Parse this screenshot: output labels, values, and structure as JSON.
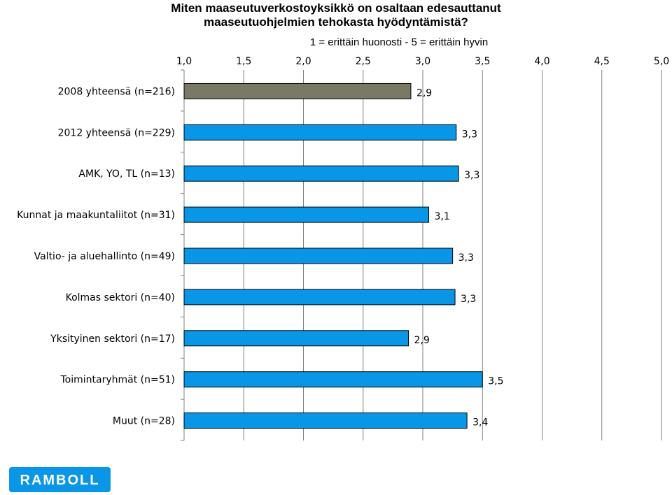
{
  "title_line1": "Miten maaseutuverkostoyksikkö on osaltaan edesauttanut",
  "title_line2": "maaseutuohjelmien tehokasta hyödyntämistä?",
  "subtitle": "1 = erittäin huonosti - 5 = erittäin hyvin",
  "logo_text": "RAMBOLL",
  "colors": {
    "bar_2008": "#7a7965",
    "bar_main": "#0a96e6",
    "bar_stroke": "#000000",
    "axis": "#808080",
    "logo_bg": "#0a96e6"
  },
  "chart_data": {
    "type": "bar",
    "orientation": "horizontal",
    "title": "Miten maaseutuverkostoyksikkö on osaltaan edesauttanut maaseutuohjelmien tehokasta hyödyntämistä?",
    "subtitle": "1 = erittäin huonosti - 5 = erittäin hyvin",
    "xlim": [
      1.0,
      5.0
    ],
    "ticks": [
      "1,0",
      "1,5",
      "2,0",
      "2,5",
      "3,0",
      "3,5",
      "4,0",
      "4,5",
      "5,0"
    ],
    "tick_values": [
      1.0,
      1.5,
      2.0,
      2.5,
      3.0,
      3.5,
      4.0,
      4.5,
      5.0
    ],
    "grid": true,
    "categories": [
      "2008 yhteensä (n=216)",
      "2012 yhteensä (n=229)",
      "AMK, YO, TL (n=13)",
      "Kunnat ja maakuntaliitot (n=31)",
      "Valtio- ja aluehallinto (n=49)",
      "Kolmas sektori (n=40)",
      "Yksityinen sektori (n=17)",
      "Toimintaryhmät (n=51)",
      "Muut (n=28)"
    ],
    "values": [
      2.9,
      3.28,
      3.3,
      3.05,
      3.25,
      3.27,
      2.88,
      3.5,
      3.37
    ],
    "labels": [
      "2,9",
      "3,3",
      "3,3",
      "3,1",
      "3,3",
      "3,3",
      "2,9",
      "3,5",
      "3,4"
    ]
  }
}
